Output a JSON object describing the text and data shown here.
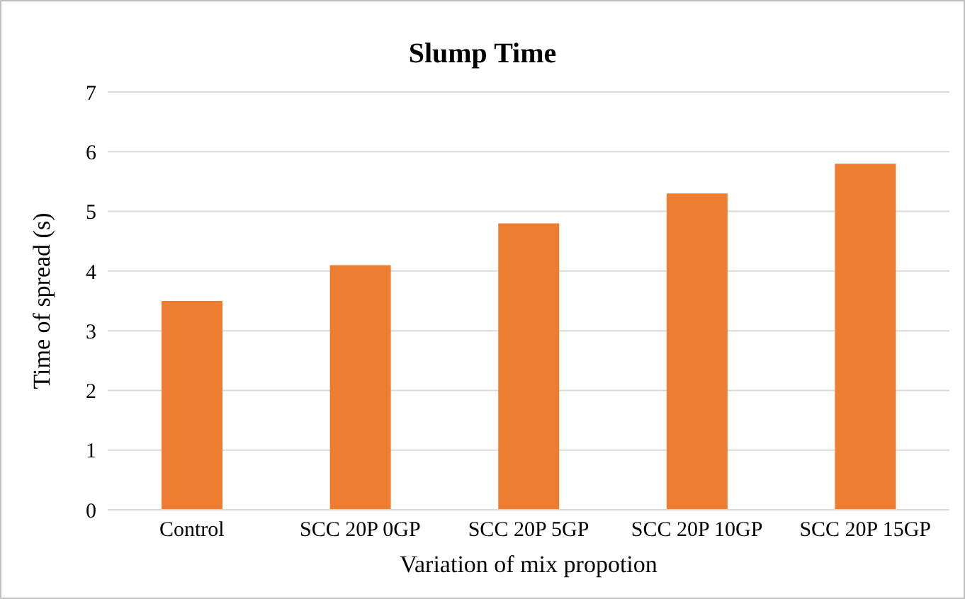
{
  "chart_data": {
    "type": "bar",
    "title": "Slump Time",
    "xlabel": "Variation of mix propotion",
    "ylabel": "Time of spread (s)",
    "categories": [
      "Control",
      "SCC 20P 0GP",
      "SCC 20P 5GP",
      "SCC 20P 10GP",
      "SCC 20P 15GP"
    ],
    "values": [
      3.5,
      4.1,
      4.8,
      5.3,
      5.8
    ],
    "color": "#ed7d31",
    "ylim": [
      0,
      7
    ],
    "yticks": [
      0,
      1,
      2,
      3,
      4,
      5,
      6,
      7
    ],
    "grid": "y"
  }
}
